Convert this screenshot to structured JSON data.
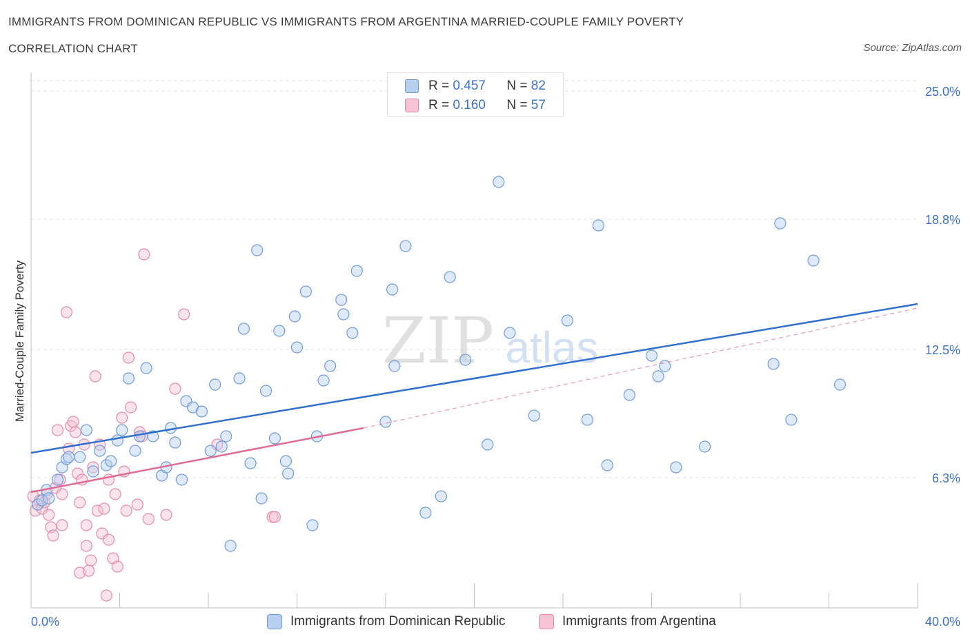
{
  "title_line1": "IMMIGRANTS FROM DOMINICAN REPUBLIC VS IMMIGRANTS FROM ARGENTINA MARRIED-COUPLE FAMILY POVERTY",
  "title_line2": "CORRELATION CHART",
  "source": "Source: ZipAtlas.com",
  "legend": {
    "r_label": "R =",
    "n_label": "N =",
    "series1": {
      "r": "0.457",
      "n": "82"
    },
    "series2": {
      "r": "0.160",
      "n": "57"
    }
  },
  "colors": {
    "blue_fill": "#b8d0f0",
    "blue_stroke": "#6f9cd8",
    "blue_line": "#2f6fd0",
    "pink_fill": "#f5c3d3",
    "pink_stroke": "#e58aaa",
    "pink_line": "#e06a96",
    "axis_label": "#3b73c7",
    "grid": "#e2e2e2"
  },
  "chart_data": {
    "type": "scatter",
    "title": "IMMIGRANTS FROM DOMINICAN REPUBLIC VS IMMIGRANTS FROM ARGENTINA MARRIED-COUPLE FAMILY POVERTY CORRELATION CHART",
    "xlabel": "",
    "ylabel": "Married-Couple Family Poverty",
    "xlim": [
      0,
      40
    ],
    "ylim": [
      0,
      25.5
    ],
    "x_tick_labels": [
      "0.0%",
      "40.0%"
    ],
    "y_ticks": [
      6.3,
      12.5,
      18.8,
      25.0
    ],
    "y_tick_labels": [
      "6.3%",
      "12.5%",
      "18.8%",
      "25.0%"
    ],
    "x_minor_ticks": [
      0,
      4,
      8,
      12,
      16,
      20,
      24,
      28,
      32,
      36,
      40
    ],
    "watermark": {
      "zip": "ZIP",
      "atlas": "atlas"
    },
    "series": [
      {
        "name": "Immigrants from Dominican Republic",
        "color": "#6f9cd8",
        "regression": {
          "x": [
            0,
            40
          ],
          "y": [
            7.5,
            14.7
          ]
        },
        "points": [
          [
            0.3,
            5.0
          ],
          [
            0.5,
            5.2
          ],
          [
            0.7,
            5.7
          ],
          [
            0.8,
            5.3
          ],
          [
            1.2,
            6.2
          ],
          [
            1.4,
            6.8
          ],
          [
            1.6,
            7.2
          ],
          [
            1.7,
            7.3
          ],
          [
            2.2,
            7.3
          ],
          [
            2.5,
            8.6
          ],
          [
            2.8,
            6.6
          ],
          [
            3.1,
            7.6
          ],
          [
            3.4,
            6.9
          ],
          [
            3.6,
            7.1
          ],
          [
            3.9,
            8.1
          ],
          [
            4.1,
            8.6
          ],
          [
            4.4,
            11.1
          ],
          [
            4.7,
            7.6
          ],
          [
            4.9,
            8.3
          ],
          [
            5.2,
            11.6
          ],
          [
            5.5,
            8.3
          ],
          [
            5.9,
            6.4
          ],
          [
            6.1,
            6.8
          ],
          [
            6.3,
            8.7
          ],
          [
            6.5,
            8.0
          ],
          [
            6.8,
            6.2
          ],
          [
            7.0,
            10.0
          ],
          [
            7.3,
            9.7
          ],
          [
            7.7,
            9.5
          ],
          [
            8.1,
            7.6
          ],
          [
            8.3,
            10.8
          ],
          [
            8.6,
            7.8
          ],
          [
            8.8,
            8.3
          ],
          [
            9.0,
            3.0
          ],
          [
            9.4,
            11.1
          ],
          [
            9.6,
            13.5
          ],
          [
            9.9,
            7.0
          ],
          [
            10.2,
            17.3
          ],
          [
            10.4,
            5.3
          ],
          [
            10.6,
            10.5
          ],
          [
            11.0,
            8.2
          ],
          [
            11.2,
            13.4
          ],
          [
            11.5,
            7.1
          ],
          [
            11.6,
            6.5
          ],
          [
            11.9,
            14.1
          ],
          [
            12.0,
            12.6
          ],
          [
            12.4,
            15.3
          ],
          [
            12.7,
            4.0
          ],
          [
            12.9,
            8.3
          ],
          [
            13.2,
            11.0
          ],
          [
            13.5,
            11.7
          ],
          [
            14.0,
            14.9
          ],
          [
            14.1,
            14.2
          ],
          [
            14.5,
            13.3
          ],
          [
            14.7,
            16.3
          ],
          [
            16.0,
            9.0
          ],
          [
            16.3,
            15.4
          ],
          [
            16.4,
            11.7
          ],
          [
            16.9,
            17.5
          ],
          [
            17.8,
            4.6
          ],
          [
            18.5,
            5.4
          ],
          [
            18.9,
            16.0
          ],
          [
            19.6,
            12.0
          ],
          [
            20.6,
            7.9
          ],
          [
            21.1,
            20.6
          ],
          [
            21.6,
            13.3
          ],
          [
            22.7,
            9.3
          ],
          [
            24.2,
            13.9
          ],
          [
            25.1,
            9.1
          ],
          [
            25.6,
            18.5
          ],
          [
            26.0,
            6.9
          ],
          [
            27.0,
            10.3
          ],
          [
            28.0,
            12.2
          ],
          [
            28.3,
            11.2
          ],
          [
            28.6,
            11.7
          ],
          [
            29.1,
            6.8
          ],
          [
            30.4,
            7.8
          ],
          [
            33.5,
            11.8
          ],
          [
            33.8,
            18.6
          ],
          [
            34.3,
            9.1
          ],
          [
            35.3,
            16.8
          ],
          [
            36.5,
            10.8
          ]
        ]
      },
      {
        "name": "Immigrants from Argentina",
        "color": "#e58aaa",
        "regression": {
          "x": [
            0,
            15
          ],
          "y": [
            5.6,
            8.7
          ]
        },
        "regression_extended": {
          "x": [
            15,
            40
          ],
          "y": [
            8.7,
            14.5
          ]
        },
        "points": [
          [
            0.1,
            5.4
          ],
          [
            0.2,
            4.7
          ],
          [
            0.3,
            5.0
          ],
          [
            0.4,
            5.2
          ],
          [
            0.5,
            4.8
          ],
          [
            0.6,
            5.1
          ],
          [
            0.7,
            5.5
          ],
          [
            0.8,
            4.5
          ],
          [
            0.9,
            3.9
          ],
          [
            1.0,
            3.5
          ],
          [
            1.1,
            5.8
          ],
          [
            1.2,
            8.6
          ],
          [
            1.3,
            6.2
          ],
          [
            1.4,
            5.5
          ],
          [
            1.4,
            4.0
          ],
          [
            1.6,
            14.3
          ],
          [
            1.7,
            7.7
          ],
          [
            1.8,
            8.8
          ],
          [
            1.9,
            9.0
          ],
          [
            2.0,
            8.5
          ],
          [
            2.1,
            6.5
          ],
          [
            2.2,
            1.7
          ],
          [
            2.2,
            5.1
          ],
          [
            2.3,
            6.2
          ],
          [
            2.4,
            7.9
          ],
          [
            2.5,
            4.0
          ],
          [
            2.5,
            3.0
          ],
          [
            2.6,
            1.8
          ],
          [
            2.7,
            2.3
          ],
          [
            2.8,
            6.8
          ],
          [
            2.9,
            11.2
          ],
          [
            3.0,
            4.7
          ],
          [
            3.1,
            7.9
          ],
          [
            3.2,
            3.6
          ],
          [
            3.3,
            4.8
          ],
          [
            3.4,
            0.6
          ],
          [
            3.5,
            3.3
          ],
          [
            3.5,
            6.2
          ],
          [
            3.7,
            2.4
          ],
          [
            3.8,
            5.5
          ],
          [
            3.9,
            2.0
          ],
          [
            4.1,
            9.2
          ],
          [
            4.2,
            6.6
          ],
          [
            4.3,
            4.7
          ],
          [
            4.4,
            12.1
          ],
          [
            4.5,
            9.7
          ],
          [
            4.8,
            5.0
          ],
          [
            4.9,
            8.5
          ],
          [
            5.0,
            8.3
          ],
          [
            5.1,
            17.1
          ],
          [
            5.3,
            4.3
          ],
          [
            6.1,
            4.5
          ],
          [
            6.5,
            10.6
          ],
          [
            6.9,
            14.2
          ],
          [
            8.4,
            7.9
          ],
          [
            10.9,
            4.4
          ],
          [
            11.0,
            4.4
          ]
        ]
      }
    ]
  },
  "bottom_legend": {
    "item1": "Immigrants from Dominican Republic",
    "item2": "Immigrants from Argentina"
  }
}
